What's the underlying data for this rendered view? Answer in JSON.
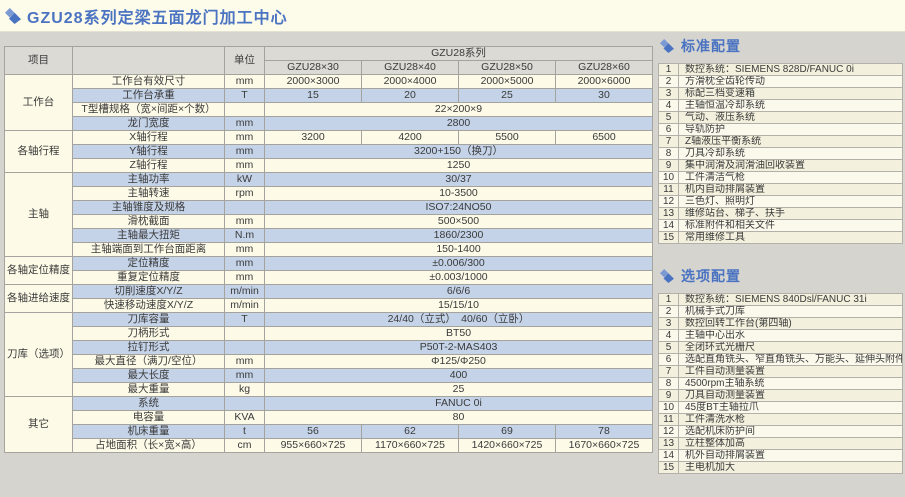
{
  "page_title": "GZU28系列定梁五面龙门加工中心",
  "colors": {
    "accent_blue": "#4a73c2",
    "row_cream": "#fdfae7",
    "row_blue": "#c4d3e8",
    "header_grey": "#dbdad5",
    "page_bg": "#d6d4cf",
    "titlebar_bg": "#fdfbe9"
  },
  "icons": {
    "title_icon": "double-diamond-icon",
    "panel_icon": "double-diamond-icon"
  },
  "spec_table": {
    "header": {
      "item_col": "项目",
      "unit_col": "单位",
      "series": "GZU28系列",
      "models": [
        "GZU28×30",
        "GZU28×40",
        "GZU28×50",
        "GZU28×60"
      ]
    },
    "rows": [
      {
        "group": "工作台",
        "group_span": 4,
        "item": "工作台有效尺寸",
        "unit": "mm",
        "values": [
          "2000×3000",
          "2000×4000",
          "2000×5000",
          "2000×6000"
        ]
      },
      {
        "item": "工作台承重",
        "unit": "T",
        "values": [
          "15",
          "20",
          "25",
          "30"
        ]
      },
      {
        "item": "T型槽规格（宽×间距×个数）",
        "unit": "",
        "span": "22×200×9"
      },
      {
        "item": "龙门宽度",
        "unit": "mm",
        "span": "2800"
      },
      {
        "group": "各轴行程",
        "group_span": 3,
        "item": "X轴行程",
        "unit": "mm",
        "values": [
          "3200",
          "4200",
          "5500",
          "6500"
        ]
      },
      {
        "item": "Y轴行程",
        "unit": "mm",
        "span": "3200+150（换刀）"
      },
      {
        "item": "Z轴行程",
        "unit": "mm",
        "span": "1250"
      },
      {
        "group": "主轴",
        "group_span": 6,
        "item": "主轴功率",
        "unit": "kW",
        "span": "30/37"
      },
      {
        "item": "主轴转速",
        "unit": "rpm",
        "span": "10-3500"
      },
      {
        "item": "主轴锥度及规格",
        "unit": "",
        "span": "ISO7:24NO50"
      },
      {
        "item": "滑枕截面",
        "unit": "mm",
        "span": "500×500"
      },
      {
        "item": "主轴最大扭矩",
        "unit": "N.m",
        "span": "1860/2300"
      },
      {
        "item": "主轴端面到工作台面距离",
        "unit": "mm",
        "span": "150-1400"
      },
      {
        "group": "各轴定位精度",
        "group_span": 2,
        "item": "定位精度",
        "unit": "mm",
        "span": "±0.006/300"
      },
      {
        "item": "重复定位精度",
        "unit": "mm",
        "span": "±0.003/1000"
      },
      {
        "group": "各轴进给速度",
        "group_span": 2,
        "item": "切削速度X/Y/Z",
        "unit": "m/min",
        "span": "6/6/6"
      },
      {
        "item": "快速移动速度X/Y/Z",
        "unit": "m/min",
        "span": "15/15/10"
      },
      {
        "group": "刀库（选项）",
        "group_span": 6,
        "item": "刀库容量",
        "unit": "T",
        "span": "24/40（立式）　40/60（立卧）"
      },
      {
        "item": "刀柄形式",
        "unit": "",
        "span": "BT50"
      },
      {
        "item": "拉钉形式",
        "unit": "",
        "span": "P50T-2-MAS403"
      },
      {
        "item": "最大直径（满刀/空位）",
        "unit": "mm",
        "span": "Φ125/Φ250"
      },
      {
        "item": "最大长度",
        "unit": "mm",
        "span": "400"
      },
      {
        "item": "最大重量",
        "unit": "kg",
        "span": "25"
      },
      {
        "group": "其它",
        "group_span": 4,
        "item": "系统",
        "unit": "",
        "span": "FANUC 0i"
      },
      {
        "item": "电容量",
        "unit": "KVA",
        "span": "80"
      },
      {
        "item": "机床重量",
        "unit": "t",
        "values": [
          "56",
          "62",
          "69",
          "78"
        ]
      },
      {
        "item": "占地面积（长×宽×高）",
        "unit": "cm",
        "values": [
          "955×660×725",
          "1170×660×725",
          "1420×660×725",
          "1670×660×725"
        ]
      }
    ]
  },
  "standard_config": {
    "title": "标准配置",
    "items": [
      {
        "no": "1",
        "text": "数控系统：SIEMENS 828D/FANUC 0i"
      },
      {
        "no": "2",
        "text": "方滑枕全齿轮传动"
      },
      {
        "no": "3",
        "text": "标配三档变速箱"
      },
      {
        "no": "4",
        "text": "主轴恒温冷却系统"
      },
      {
        "no": "5",
        "text": "气动、液压系统"
      },
      {
        "no": "6",
        "text": "导轨防护"
      },
      {
        "no": "7",
        "text": "Z轴液压平衡系统"
      },
      {
        "no": "8",
        "text": "刀具冷却系统"
      },
      {
        "no": "9",
        "text": "集中润滑及润滑油回收装置"
      },
      {
        "no": "10",
        "text": "工件清洁气枪"
      },
      {
        "no": "11",
        "text": "机内自动排屑装置"
      },
      {
        "no": "12",
        "text": "三色灯、照明灯"
      },
      {
        "no": "13",
        "text": "维修站台、梯子、扶手"
      },
      {
        "no": "14",
        "text": "标准附件和相关文件"
      },
      {
        "no": "15",
        "text": "常用维修工具"
      }
    ]
  },
  "optional_config": {
    "title": "选项配置",
    "items": [
      {
        "no": "1",
        "text": "数控系统：SIEMENS 840Dsl/FANUC 31i"
      },
      {
        "no": "2",
        "text": "机械手式刀库"
      },
      {
        "no": "3",
        "text": "数控回转工作台(第四轴)"
      },
      {
        "no": "4",
        "text": "主轴中心出水"
      },
      {
        "no": "5",
        "text": "全闭环式光栅尺"
      },
      {
        "no": "6",
        "text": "选配直角铣头、窄直角铣头、万能头、延伸头附件"
      },
      {
        "no": "7",
        "text": "工件自动测量装置"
      },
      {
        "no": "8",
        "text": "4500rpm主轴系统"
      },
      {
        "no": "9",
        "text": "刀具自动测量装置"
      },
      {
        "no": "10",
        "text": "45度BT主轴拉爪"
      },
      {
        "no": "11",
        "text": "工件清洗水枪"
      },
      {
        "no": "12",
        "text": "选配机床防护间"
      },
      {
        "no": "13",
        "text": "立柱整体加高"
      },
      {
        "no": "14",
        "text": "机外自动排屑装置"
      },
      {
        "no": "15",
        "text": "主电机加大"
      }
    ]
  }
}
